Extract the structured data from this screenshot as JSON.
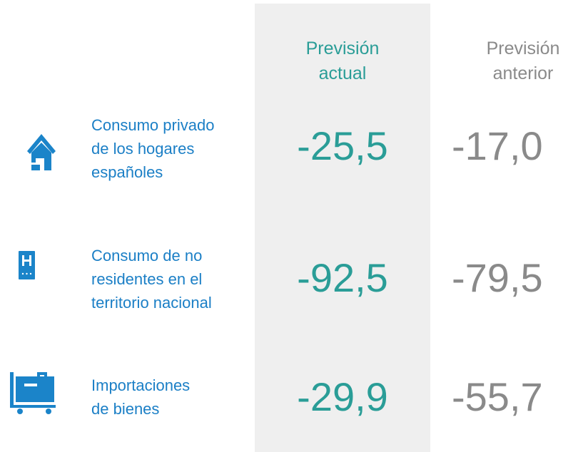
{
  "header": {
    "current": [
      "Previsión",
      "actual"
    ],
    "previous": [
      "Previsión",
      "anterior"
    ]
  },
  "rows": [
    {
      "label": [
        "Consumo privado",
        "de los hogares",
        "españoles"
      ],
      "current": "-25,5",
      "previous": "-17,0"
    },
    {
      "label": [
        "Consumo de no",
        "residentes en el",
        "territorio nacional"
      ],
      "current": "-92,5",
      "previous": "-79,5"
    },
    {
      "label": [
        "Importaciones",
        "de bienes"
      ],
      "current": "-29,9",
      "previous": "-55,7"
    }
  ]
}
